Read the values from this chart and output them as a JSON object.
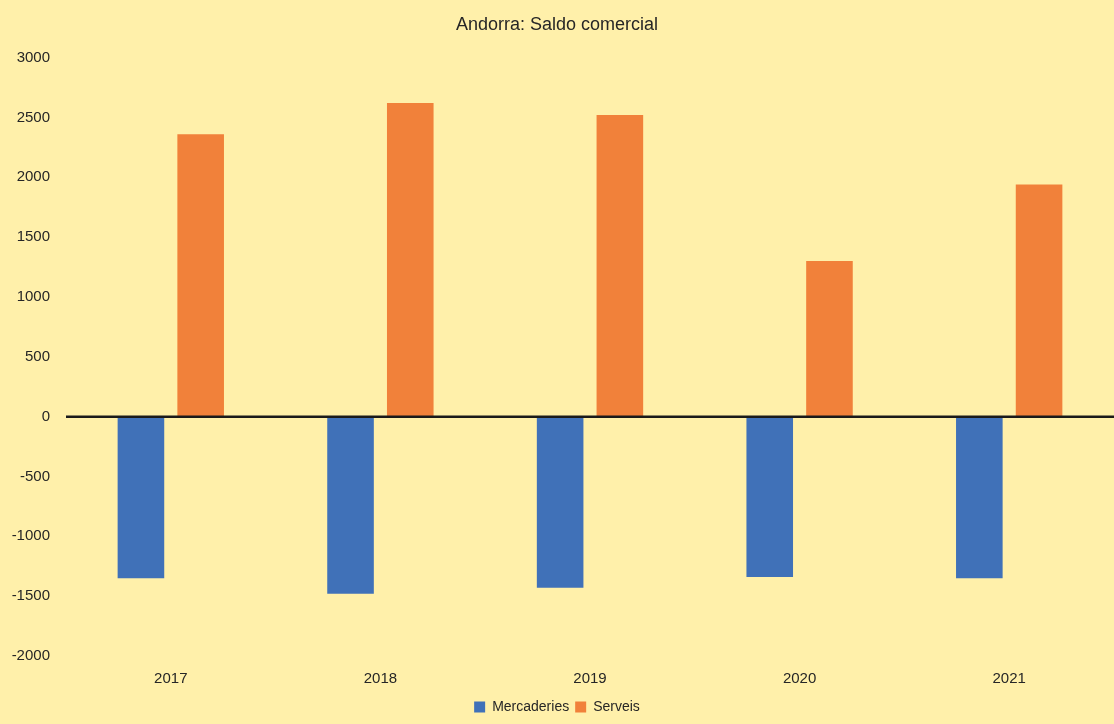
{
  "chart_data": {
    "type": "bar",
    "title": "Andorra: Saldo comercial",
    "categories": [
      "2017",
      "2018",
      "2019",
      "2020",
      "2021"
    ],
    "series": [
      {
        "name": "Mercaderies",
        "color": "#4071b8",
        "values": [
          -1350,
          -1480,
          -1430,
          -1340,
          -1350
        ]
      },
      {
        "name": "Serveis",
        "color": "#f1813a",
        "values": [
          2360,
          2620,
          2520,
          1300,
          1940
        ]
      }
    ],
    "ylim": [
      -2000,
      3000
    ],
    "yticks": [
      -2000,
      -1500,
      -1000,
      -500,
      0,
      500,
      1000,
      1500,
      2000,
      2500,
      3000
    ],
    "legend": "bottom"
  }
}
